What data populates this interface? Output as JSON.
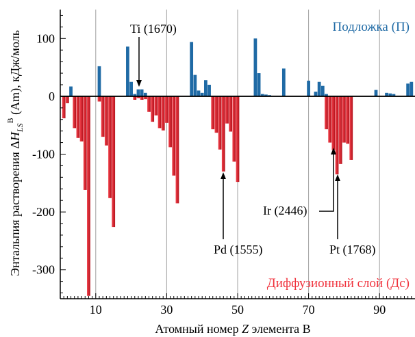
{
  "colors": {
    "blue": "#1f6aa5",
    "red_dark": "#b3121c",
    "red_light": "#f2404a",
    "grid": "#a0a0a0",
    "axis": "#000000"
  },
  "chart_data": {
    "type": "bar",
    "xlabel_prefix": "Атомный номер ",
    "xlabel_var": "Z",
    "xlabel_suffix": " элемента B",
    "ylabel_pre": "Энтальпия растворения Δ",
    "ylabel_var": "H",
    "ylabel_sub": "LS",
    "ylabel_sup": "B",
    "ylabel_post": " (Am), кДж/моль",
    "xlim": [
      0,
      100
    ],
    "ylim": [
      -350,
      150
    ],
    "x_ticks": [
      10,
      30,
      50,
      70,
      90
    ],
    "y_ticks": [
      100,
      0,
      -100,
      -200,
      -300
    ],
    "x_ticks_labels": [
      "10",
      "30",
      "50",
      "70",
      "90"
    ],
    "y_ticks_labels": [
      "100",
      "0",
      "-100",
      "-200",
      "-300"
    ],
    "gridlines_x": [
      10,
      30,
      50,
      70,
      90
    ],
    "series": [
      {
        "name": "Подложка (П)",
        "values": [
          {
            "z": 3,
            "v": 17
          },
          {
            "z": 11,
            "v": 52
          },
          {
            "z": 19,
            "v": 86
          },
          {
            "z": 20,
            "v": 25
          },
          {
            "z": 21,
            "v": 4
          },
          {
            "z": 22,
            "v": 12
          },
          {
            "z": 23,
            "v": 12
          },
          {
            "z": 24,
            "v": 6
          },
          {
            "z": 37,
            "v": 94
          },
          {
            "z": 38,
            "v": 37
          },
          {
            "z": 39,
            "v": 10
          },
          {
            "z": 40,
            "v": 6
          },
          {
            "z": 41,
            "v": 28
          },
          {
            "z": 42,
            "v": 20
          },
          {
            "z": 55,
            "v": 100
          },
          {
            "z": 56,
            "v": 40
          },
          {
            "z": 57,
            "v": 4
          },
          {
            "z": 58,
            "v": 3
          },
          {
            "z": 59,
            "v": 2
          },
          {
            "z": 60,
            "v": 1
          },
          {
            "z": 63,
            "v": 48
          },
          {
            "z": 70,
            "v": 27
          },
          {
            "z": 72,
            "v": 8
          },
          {
            "z": 73,
            "v": 25
          },
          {
            "z": 74,
            "v": 18
          },
          {
            "z": 75,
            "v": 4
          },
          {
            "z": 89,
            "v": 11
          },
          {
            "z": 92,
            "v": 6
          },
          {
            "z": 93,
            "v": 5
          },
          {
            "z": 94,
            "v": 4
          },
          {
            "z": 98,
            "v": 22
          },
          {
            "z": 99,
            "v": 25
          }
        ]
      },
      {
        "name": "Диффузионный слой (Дс)",
        "values": [
          {
            "z": 1,
            "v": -38
          },
          {
            "z": 2,
            "v": -12
          },
          {
            "z": 4,
            "v": -55
          },
          {
            "z": 5,
            "v": -72
          },
          {
            "z": 6,
            "v": -78
          },
          {
            "z": 7,
            "v": -162
          },
          {
            "z": 8,
            "v": -345
          },
          {
            "z": 11,
            "v": -9
          },
          {
            "z": 12,
            "v": -70
          },
          {
            "z": 13,
            "v": -85
          },
          {
            "z": 14,
            "v": -176
          },
          {
            "z": 15,
            "v": -226
          },
          {
            "z": 21,
            "v": -6
          },
          {
            "z": 22,
            "v": -3
          },
          {
            "z": 23,
            "v": -6
          },
          {
            "z": 24,
            "v": -5
          },
          {
            "z": 25,
            "v": -27
          },
          {
            "z": 26,
            "v": -44
          },
          {
            "z": 27,
            "v": -33
          },
          {
            "z": 28,
            "v": -55
          },
          {
            "z": 29,
            "v": -59
          },
          {
            "z": 30,
            "v": -46
          },
          {
            "z": 31,
            "v": -88
          },
          {
            "z": 32,
            "v": -137
          },
          {
            "z": 33,
            "v": -185
          },
          {
            "z": 43,
            "v": -57
          },
          {
            "z": 44,
            "v": -63
          },
          {
            "z": 45,
            "v": -92
          },
          {
            "z": 46,
            "v": -130
          },
          {
            "z": 47,
            "v": -47
          },
          {
            "z": 48,
            "v": -61
          },
          {
            "z": 49,
            "v": -113
          },
          {
            "z": 50,
            "v": -148
          },
          {
            "z": 75,
            "v": -57
          },
          {
            "z": 76,
            "v": -80
          },
          {
            "z": 77,
            "v": -93
          },
          {
            "z": 78,
            "v": -135
          },
          {
            "z": 79,
            "v": -117
          },
          {
            "z": 80,
            "v": -80
          },
          {
            "z": 81,
            "v": -82
          },
          {
            "z": 82,
            "v": -110
          }
        ]
      }
    ],
    "annotations": [
      {
        "text": "Ti (1670)",
        "z": 22
      },
      {
        "text": "Pd (1555)",
        "z": 46
      },
      {
        "text": "Ir (2446)",
        "z": 77
      },
      {
        "text": "Pt (1768)",
        "z": 78
      }
    ]
  }
}
